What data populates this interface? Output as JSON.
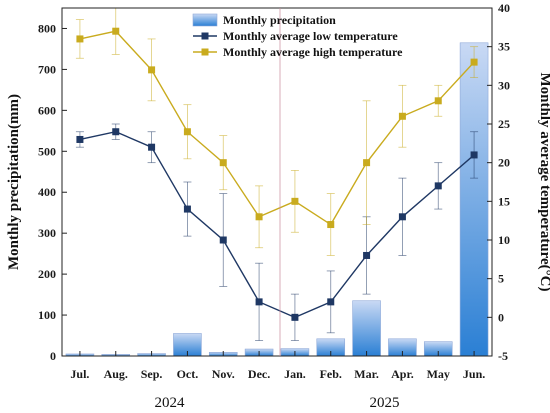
{
  "chart_data": {
    "type": "bar-line-combo",
    "categories": [
      "Jul.",
      "Aug.",
      "Sep.",
      "Oct.",
      "Nov.",
      "Dec.",
      "Jan.",
      "Feb.",
      "Mar.",
      "Apr.",
      "May",
      "Jun."
    ],
    "years": [
      {
        "label": "2024",
        "from": 0,
        "to": 5
      },
      {
        "label": "2025",
        "from": 6,
        "to": 11
      }
    ],
    "y_left": {
      "label": "Monthly precipitation(mm)",
      "min": 0,
      "max": 850,
      "ticks": [
        0,
        100,
        200,
        300,
        400,
        500,
        600,
        700,
        800
      ]
    },
    "y_right": {
      "label": "Monthly average temperature(°C)",
      "min": -5,
      "max": 40,
      "ticks": [
        -5,
        0,
        5,
        10,
        15,
        20,
        25,
        30,
        35,
        40
      ]
    },
    "series": [
      {
        "name": "Monthly precipitation",
        "kind": "bar",
        "axis": "left",
        "values": [
          5,
          4,
          6,
          55,
          9,
          17,
          18,
          42,
          135,
          42,
          35,
          765
        ],
        "color_top": "#c9d9f4",
        "color_bottom": "#2a7fd4"
      },
      {
        "name": "Monthly average low temperature",
        "kind": "line",
        "axis": "right",
        "color": "#1f3864",
        "marker_color": "#1f3864",
        "values": [
          23,
          24,
          22,
          14,
          10,
          2,
          0,
          2,
          8,
          13,
          17,
          21
        ],
        "errors": [
          1,
          1,
          2,
          3.5,
          6,
          5,
          3,
          4,
          5,
          5,
          3,
          3
        ]
      },
      {
        "name": "Monthly average high temperature",
        "kind": "line",
        "axis": "right",
        "color": "#c9ab1e",
        "marker_color": "#c9ab1e",
        "values": [
          36,
          37,
          32,
          24,
          20,
          13,
          15,
          12,
          20,
          26,
          28,
          33
        ],
        "errors": [
          2.5,
          3,
          4,
          3.5,
          3.5,
          4,
          4,
          4,
          8,
          4,
          2,
          2
        ]
      }
    ],
    "legend_position": "top"
  }
}
